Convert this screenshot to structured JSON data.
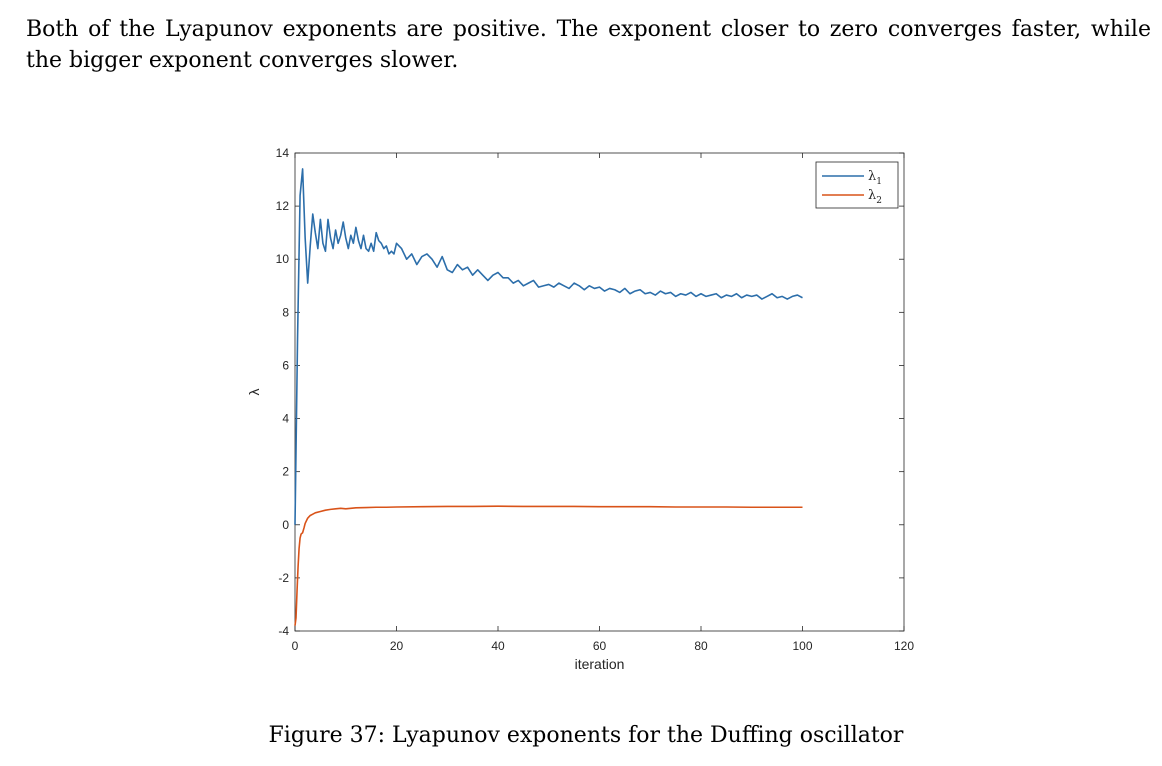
{
  "document": {
    "paragraph": "Both of the Lyapunov exponents are positive. The exponent closer to zero converges faster, while the bigger exponent converges slower.",
    "caption": "Figure 37: Lyapunov exponents for the Duffing oscillator"
  },
  "chart_data": {
    "type": "line",
    "title": "",
    "xlabel": "iteration",
    "ylabel": "λ",
    "xlim": [
      0,
      120
    ],
    "ylim": [
      -4,
      14
    ],
    "xticks": [
      0,
      20,
      40,
      60,
      80,
      100,
      120
    ],
    "yticks": [
      -4,
      -2,
      0,
      2,
      4,
      6,
      8,
      10,
      12,
      14
    ],
    "grid": false,
    "legend_position": "top-right",
    "series": [
      {
        "name": "λ",
        "subscript": "1",
        "color": "#2C6EAA",
        "x": [
          0,
          0.5,
          1,
          1.5,
          2,
          2.5,
          3,
          3.5,
          4,
          4.5,
          5,
          5.5,
          6,
          6.5,
          7,
          7.5,
          8,
          8.5,
          9,
          9.5,
          10,
          10.5,
          11,
          11.5,
          12,
          12.5,
          13,
          13.5,
          14,
          14.5,
          15,
          15.5,
          16,
          16.5,
          17,
          17.5,
          18,
          18.5,
          19,
          19.5,
          20,
          21,
          22,
          23,
          24,
          25,
          26,
          27,
          28,
          29,
          30,
          31,
          32,
          33,
          34,
          35,
          36,
          37,
          38,
          39,
          40,
          41,
          42,
          43,
          44,
          45,
          46,
          47,
          48,
          49,
          50,
          51,
          52,
          53,
          54,
          55,
          56,
          57,
          58,
          59,
          60,
          61,
          62,
          63,
          64,
          65,
          66,
          67,
          68,
          69,
          70,
          71,
          72,
          73,
          74,
          75,
          76,
          77,
          78,
          79,
          80,
          81,
          82,
          83,
          84,
          85,
          86,
          87,
          88,
          89,
          90,
          91,
          92,
          93,
          94,
          95,
          96,
          97,
          98,
          99,
          100
        ],
        "values": [
          0.0,
          7.0,
          12.4,
          13.4,
          10.8,
          9.1,
          10.5,
          11.7,
          11.0,
          10.4,
          11.5,
          10.6,
          10.3,
          11.5,
          10.8,
          10.4,
          11.1,
          10.6,
          10.9,
          11.4,
          10.8,
          10.4,
          10.9,
          10.6,
          11.2,
          10.7,
          10.4,
          10.9,
          10.4,
          10.3,
          10.6,
          10.3,
          11.0,
          10.7,
          10.6,
          10.4,
          10.5,
          10.2,
          10.3,
          10.2,
          10.6,
          10.4,
          10.0,
          10.2,
          9.8,
          10.1,
          10.2,
          10.0,
          9.7,
          10.1,
          9.6,
          9.5,
          9.8,
          9.6,
          9.7,
          9.4,
          9.6,
          9.4,
          9.2,
          9.4,
          9.5,
          9.3,
          9.3,
          9.1,
          9.2,
          9.0,
          9.1,
          9.2,
          8.95,
          9.0,
          9.05,
          8.95,
          9.1,
          9.0,
          8.9,
          9.1,
          9.0,
          8.85,
          9.0,
          8.9,
          8.95,
          8.8,
          8.9,
          8.85,
          8.75,
          8.9,
          8.7,
          8.8,
          8.85,
          8.7,
          8.75,
          8.65,
          8.8,
          8.7,
          8.75,
          8.6,
          8.7,
          8.65,
          8.75,
          8.6,
          8.7,
          8.6,
          8.65,
          8.7,
          8.55,
          8.65,
          8.6,
          8.7,
          8.55,
          8.65,
          8.6,
          8.65,
          8.5,
          8.6,
          8.7,
          8.55,
          8.6,
          8.5,
          8.6,
          8.65,
          8.55
        ]
      },
      {
        "name": "λ",
        "subscript": "2",
        "color": "#D95319",
        "x": [
          0,
          0.2,
          0.4,
          0.6,
          0.8,
          1,
          1.2,
          1.5,
          1.8,
          2,
          2.5,
          3,
          3.5,
          4,
          5,
          6,
          7,
          8,
          9,
          10,
          12,
          14,
          16,
          18,
          20,
          25,
          30,
          35,
          40,
          45,
          50,
          55,
          60,
          65,
          70,
          75,
          80,
          85,
          90,
          95,
          100
        ],
        "values": [
          -3.8,
          -3.5,
          -2.5,
          -1.6,
          -0.9,
          -0.5,
          -0.35,
          -0.3,
          -0.1,
          0.05,
          0.25,
          0.35,
          0.4,
          0.45,
          0.5,
          0.55,
          0.58,
          0.6,
          0.62,
          0.6,
          0.64,
          0.65,
          0.66,
          0.66,
          0.67,
          0.68,
          0.69,
          0.69,
          0.7,
          0.69,
          0.69,
          0.69,
          0.68,
          0.68,
          0.68,
          0.67,
          0.67,
          0.67,
          0.66,
          0.66,
          0.66
        ]
      }
    ]
  }
}
